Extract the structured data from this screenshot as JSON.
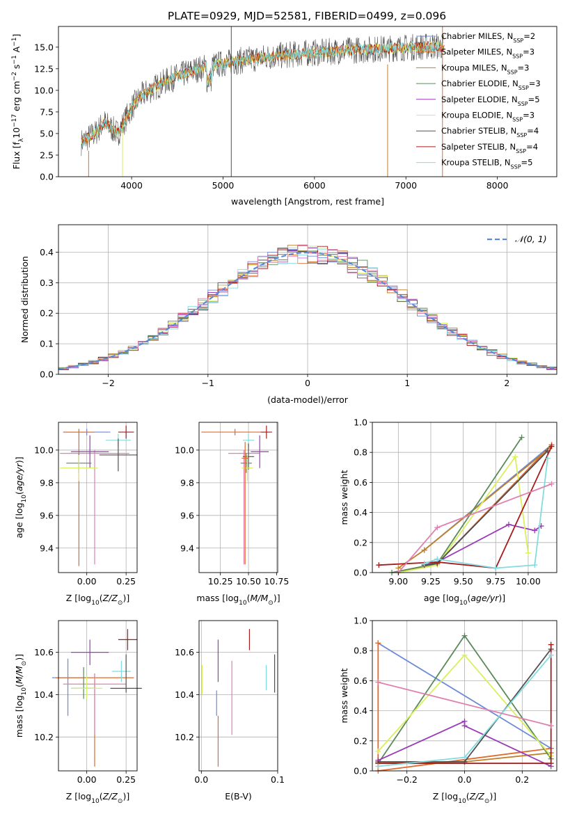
{
  "figure": {
    "title": "PLATE=0929, MJD=52581, FIBERID=0499, z=0.096"
  },
  "colors": {
    "chabrier_miles": "#6a8ad8",
    "salpeter_miles": "#e06a2a",
    "kroupa_miles": "#c07f2a",
    "chabrier_elodie": "#5a8a5a",
    "salpeter_elodie": "#9a3ab8",
    "kroupa_elodie": "#d8f05a",
    "chabrier_stelib": "#505050",
    "salpeter_stelib": "#a81a1a",
    "kroupa_stelib": "#80dce0",
    "pink": "#e080b0",
    "normal_curve": "#5a8ad8",
    "grid": "#b0b0b0"
  },
  "chart_data": [
    {
      "id": "spectrum",
      "type": "line",
      "xlabel": "wavelength [Angstrom, rest frame]",
      "ylabel": "Flux [f_λ10^-17 erg cm^-2 s^-1 A^-1]",
      "xlim": [
        3200,
        8650
      ],
      "ylim": [
        0,
        17.4
      ],
      "xticks": [
        "4000",
        "5000",
        "6000",
        "7000",
        "8000"
      ],
      "yticks": [
        "0.0",
        "2.5",
        "5.0",
        "7.5",
        "10.0",
        "12.5",
        "15.0"
      ],
      "grid": false,
      "legend_position": "top-right",
      "legend": [
        {
          "label": "Chabrier MILES, N",
          "sub": "SSP",
          "suffix": "=2",
          "color_key": "chabrier_miles"
        },
        {
          "label": "Salpeter MILES, N",
          "sub": "SSP",
          "suffix": "=3",
          "color_key": "salpeter_miles"
        },
        {
          "label": "Kroupa MILES, N",
          "sub": "SSP",
          "suffix": "=3",
          "color_key": "kroupa_miles"
        },
        {
          "label": "Chabrier ELODIE, N",
          "sub": "SSP",
          "suffix": "=3",
          "color_key": "chabrier_elodie"
        },
        {
          "label": "Salpeter ELODIE, N",
          "sub": "SSP",
          "suffix": "=5",
          "color_key": "salpeter_elodie"
        },
        {
          "label": "Kroupa ELODIE, N",
          "sub": "SSP",
          "suffix": "=3",
          "color_key": "kroupa_elodie"
        },
        {
          "label": "Chabrier STELIB, N",
          "sub": "SSP",
          "suffix": "=4",
          "color_key": "chabrier_stelib"
        },
        {
          "label": "Salpeter STELIB, N",
          "sub": "SSP",
          "suffix": "=4",
          "color_key": "salpeter_stelib"
        },
        {
          "label": "Kroupa STELIB, N",
          "sub": "SSP",
          "suffix": "=5",
          "color_key": "kroupa_stelib"
        }
      ],
      "continuum_x": [
        3450,
        3600,
        3700,
        3850,
        4000,
        4100,
        4200,
        4300,
        4400,
        4500,
        4700,
        4900,
        5100,
        5300,
        5500,
        5700,
        5900,
        6100,
        6300,
        6500,
        6700,
        6900,
        7100,
        7300,
        7400
      ],
      "continuum_y": [
        4.0,
        5.0,
        6.3,
        5.0,
        8.0,
        9.3,
        10.0,
        10.6,
        11.2,
        11.6,
        12.4,
        12.9,
        13.3,
        13.6,
        13.9,
        14.1,
        14.3,
        14.4,
        14.6,
        14.7,
        14.8,
        14.9,
        15.0,
        15.1,
        15.1
      ],
      "spikes": [
        {
          "x": 5090,
          "y_top": 17.4,
          "y_bottom": 0,
          "color_key": "chabrier_stelib"
        },
        {
          "x": 7400,
          "y_top": 17.4,
          "y_bottom": 0,
          "color_key": "salpeter_miles"
        },
        {
          "x": 6800,
          "y_top": 13.0,
          "y_bottom": 0,
          "color_key": "kroupa_miles"
        },
        {
          "x": 3900,
          "y_top": 6.0,
          "y_bottom": 0,
          "color_key": "kroupa_elodie"
        },
        {
          "x": 3530,
          "y_top": 3.0,
          "y_bottom": 0,
          "color_key": "salpeter_miles"
        }
      ]
    },
    {
      "id": "residuals",
      "type": "bar",
      "xlabel": "(data-model)/error",
      "ylabel": "Normed distribution",
      "xlim": [
        -2.5,
        2.5
      ],
      "ylim": [
        0,
        0.49
      ],
      "xticks": [
        "−2",
        "−1",
        "0",
        "1",
        "2"
      ],
      "yticks": [
        "0.0",
        "0.1",
        "0.2",
        "0.3",
        "0.4"
      ],
      "grid": true,
      "legend_position": "top-right",
      "legend": [
        {
          "label": "𝒩(0, 1)",
          "color_key": "normal_curve"
        }
      ],
      "bin_width": 0.1,
      "bin_start": -2.5
    },
    {
      "id": "age_vs_Z",
      "type": "scatter",
      "xlabel": "Z [log10(Z/Z⊙)]",
      "ylabel": "age [log10(age/yr)]",
      "xlim": [
        -0.18,
        0.32
      ],
      "ylim": [
        9.25,
        10.17
      ],
      "xticks": [
        "0.00",
        "0.25"
      ],
      "yticks": [
        "9.4",
        "9.6",
        "9.8",
        "10.0"
      ],
      "grid": true,
      "points": [
        {
          "x": 0.0,
          "y": 10.11,
          "xerr": 0.15,
          "yerr": 0.02,
          "color_key": "chabrier_miles"
        },
        {
          "x": -0.05,
          "y": 10.11,
          "xerr": 0.1,
          "yerr": [
            0.82,
            0.02
          ],
          "color_key": "salpeter_miles"
        },
        {
          "x": 0.25,
          "y": 10.11,
          "xerr": 0.05,
          "yerr": 0.04,
          "color_key": "salpeter_stelib"
        },
        {
          "x": 0.2,
          "y": 10.06,
          "xerr": 0.08,
          "yerr": 0.04,
          "color_key": "kroupa_stelib"
        },
        {
          "x": 0.05,
          "y": 9.98,
          "xerr": 0.22,
          "yerr": [
            0.68,
            0.02
          ],
          "color_key": "pink"
        },
        {
          "x": 0.02,
          "y": 9.99,
          "xerr": 0.12,
          "yerr": 0.1,
          "color_key": "salpeter_elodie"
        },
        {
          "x": 0.2,
          "y": 9.97,
          "xerr": 0.12,
          "yerr": 0.1,
          "color_key": "chabrier_stelib"
        },
        {
          "x": -0.05,
          "y": 9.92,
          "xerr": 0.08,
          "yerr": 0.06,
          "color_key": "chabrier_elodie"
        },
        {
          "x": -0.05,
          "y": 9.89,
          "xerr": 0.12,
          "yerr": 0.08,
          "color_key": "kroupa_elodie"
        }
      ]
    },
    {
      "id": "age_vs_mass",
      "type": "scatter",
      "xlabel": "mass [log10(M/M⊙)]",
      "ylabel": "",
      "xlim": [
        10.06,
        10.76
      ],
      "ylim": [
        9.25,
        10.17
      ],
      "xticks": [
        "10.25",
        "10.50",
        "10.75"
      ],
      "yticks": [
        "9.4",
        "9.6",
        "9.8",
        "10.0"
      ],
      "grid": true,
      "points": [
        {
          "x": 10.38,
          "y": 10.11,
          "xerr": 0.3,
          "yerr": 0.02,
          "color_key": "salpeter_miles"
        },
        {
          "x": 10.66,
          "y": 10.11,
          "xerr": 0.05,
          "yerr": 0.04,
          "color_key": "salpeter_stelib"
        },
        {
          "x": 10.5,
          "y": 10.06,
          "xerr": 0.05,
          "yerr": 0.04,
          "color_key": "kroupa_stelib"
        },
        {
          "x": 10.46,
          "y": 9.98,
          "xerr": 0.14,
          "yerr": [
            0.68,
            0.02
          ],
          "color_key": "pink"
        },
        {
          "x": 10.6,
          "y": 9.99,
          "xerr": 0.08,
          "yerr": 0.1,
          "color_key": "salpeter_elodie"
        },
        {
          "x": 10.5,
          "y": 9.96,
          "xerr": 0.05,
          "yerr": 0.08,
          "color_key": "chabrier_stelib"
        },
        {
          "x": 10.48,
          "y": 9.92,
          "xerr": 0.05,
          "yerr": 0.06,
          "color_key": "chabrier_elodie"
        },
        {
          "x": 10.49,
          "y": 9.89,
          "xerr": 0.05,
          "yerr": 0.08,
          "color_key": "kroupa_elodie"
        },
        {
          "x": 10.47,
          "y": 9.95,
          "xerr": 0.03,
          "yerr": [
            0.65,
            0.1
          ],
          "color_key": "salpeter_miles"
        }
      ]
    },
    {
      "id": "mass_weight_vs_age",
      "type": "line",
      "xlabel": "age [log10(age/yr)]",
      "ylabel": "mass weight",
      "xlim": [
        8.8,
        10.22
      ],
      "ylim": [
        0,
        1.0
      ],
      "xticks": [
        "9.00",
        "9.25",
        "9.50",
        "9.75",
        "10.00"
      ],
      "yticks": [
        "0.0",
        "0.2",
        "0.4",
        "0.6",
        "0.8",
        "1.0"
      ],
      "grid": true,
      "series": [
        {
          "color_key": "chabrier_miles",
          "x": [
            9.2,
            10.18
          ],
          "y": [
            0.15,
            0.85
          ]
        },
        {
          "color_key": "salpeter_miles",
          "x": [
            9.0,
            9.3,
            10.18
          ],
          "y": [
            0.0,
            0.06,
            0.85
          ]
        },
        {
          "color_key": "kroupa_miles",
          "x": [
            9.0,
            9.2,
            10.18
          ],
          "y": [
            0.03,
            0.15,
            0.84
          ]
        },
        {
          "color_key": "chabrier_elodie",
          "x": [
            8.95,
            9.3,
            9.95
          ],
          "y": [
            0.0,
            0.06,
            0.9
          ]
        },
        {
          "color_key": "salpeter_elodie",
          "x": [
            9.2,
            9.3,
            9.85,
            10.05,
            10.1
          ],
          "y": [
            0.05,
            0.07,
            0.32,
            0.28,
            0.31
          ]
        },
        {
          "color_key": "kroupa_elodie",
          "x": [
            9.0,
            9.3,
            9.9,
            10.0
          ],
          "y": [
            0.0,
            0.05,
            0.77,
            0.13
          ]
        },
        {
          "color_key": "chabrier_stelib",
          "x": [
            9.2,
            9.3,
            10.15
          ],
          "y": [
            0.05,
            0.06,
            0.81
          ]
        },
        {
          "color_key": "salpeter_stelib",
          "x": [
            8.85,
            9.3,
            9.75,
            10.18
          ],
          "y": [
            0.05,
            0.07,
            0.03,
            0.84
          ]
        },
        {
          "color_key": "kroupa_stelib",
          "x": [
            9.2,
            9.3,
            9.75,
            10.05,
            10.15
          ],
          "y": [
            0.06,
            0.09,
            0.03,
            0.05,
            0.76
          ]
        },
        {
          "color_key": "pink",
          "x": [
            9.0,
            9.3,
            10.18
          ],
          "y": [
            0.0,
            0.3,
            0.59
          ]
        }
      ]
    },
    {
      "id": "mass_vs_Z",
      "type": "scatter",
      "xlabel": "Z [log10(Z/Z⊙)]",
      "ylabel": "mass [log10(M/M⊙)]",
      "xlim": [
        -0.18,
        0.32
      ],
      "ylim": [
        10.04,
        10.75
      ],
      "xticks": [
        "0.00",
        "0.25"
      ],
      "yticks": [
        "10.2",
        "10.4",
        "10.6"
      ],
      "grid": true,
      "points": [
        {
          "x": -0.12,
          "y": 10.48,
          "xerr": 0.1,
          "yerr": [
            0.18,
            0.09
          ],
          "color_key": "chabrier_miles"
        },
        {
          "x": 0.05,
          "y": 10.48,
          "xerr": 0.25,
          "yerr": [
            0.42,
            0.02
          ],
          "color_key": "salpeter_miles"
        },
        {
          "x": 0.26,
          "y": 10.66,
          "xerr": 0.06,
          "yerr": 0.05,
          "color_key": "salpeter_stelib"
        },
        {
          "x": 0.22,
          "y": 10.51,
          "xerr": 0.06,
          "yerr": 0.05,
          "color_key": "kroupa_stelib"
        },
        {
          "x": 0.05,
          "y": 10.45,
          "xerr": 0.2,
          "yerr": [
            0.24,
            0.05
          ],
          "color_key": "pink"
        },
        {
          "x": 0.02,
          "y": 10.6,
          "xerr": 0.12,
          "yerr": 0.06,
          "color_key": "salpeter_elodie"
        },
        {
          "x": 0.25,
          "y": 10.43,
          "xerr": 0.1,
          "yerr": [
            0.02,
            0.16
          ],
          "color_key": "chabrier_stelib"
        },
        {
          "x": -0.02,
          "y": 10.43,
          "xerr": 0.08,
          "yerr": [
            0.05,
            0.1
          ],
          "color_key": "chabrier_elodie"
        },
        {
          "x": 0.0,
          "y": 10.43,
          "xerr": 0.1,
          "yerr": [
            0.05,
            0.06
          ],
          "color_key": "kroupa_elodie"
        }
      ]
    },
    {
      "id": "mass_vs_ebv",
      "type": "scatter",
      "xlabel": "E(B-V)",
      "ylabel": "",
      "xlim": [
        -0.003,
        0.1
      ],
      "ylim": [
        10.04,
        10.75
      ],
      "xticks": [
        "0.0",
        "0.1"
      ],
      "yticks": [
        "10.2",
        "10.4",
        "10.6"
      ],
      "grid": true,
      "points": [
        {
          "x": 0.001,
          "y": 10.47,
          "yerr": 0.07,
          "color_key": "kroupa_elodie"
        },
        {
          "x": 0.02,
          "y": 10.36,
          "yerr": 0.06,
          "color_key": "chabrier_miles"
        },
        {
          "x": 0.022,
          "y": 10.3,
          "yerr": [
            0.24,
            0.0
          ],
          "color_key": "salpeter_miles"
        },
        {
          "x": 0.022,
          "y": 10.56,
          "yerr": 0.1,
          "color_key": "salpeter_elodie"
        },
        {
          "x": 0.04,
          "y": 10.4,
          "yerr": [
            0.19,
            0.16
          ],
          "color_key": "pink"
        },
        {
          "x": 0.063,
          "y": 10.66,
          "yerr": 0.05,
          "color_key": "salpeter_stelib"
        },
        {
          "x": 0.085,
          "y": 10.48,
          "yerr": 0.06,
          "color_key": "kroupa_stelib"
        },
        {
          "x": 0.096,
          "y": 10.5,
          "yerr": 0.09,
          "color_key": "chabrier_stelib"
        }
      ]
    },
    {
      "id": "mass_weight_vs_Z",
      "type": "line",
      "xlabel": "Z [log10(Z/Z⊙)]",
      "ylabel": "mass weight",
      "xlim": [
        -0.32,
        0.32
      ],
      "ylim": [
        0,
        1.0
      ],
      "xticks": [
        "−0.2",
        "0.0",
        "0.2"
      ],
      "yticks": [
        "0.0",
        "0.2",
        "0.4",
        "0.6",
        "0.8",
        "1.0"
      ],
      "grid": true,
      "series": [
        {
          "color_key": "chabrier_miles",
          "x": [
            -0.3,
            0.3
          ],
          "y": [
            0.85,
            0.15
          ]
        },
        {
          "color_key": "salpeter_miles",
          "x": [
            -0.3,
            -0.3,
            0.3
          ],
          "y": [
            0.85,
            0.0,
            0.15
          ]
        },
        {
          "color_key": "kroupa_miles",
          "x": [
            -0.3,
            0.0,
            0.3
          ],
          "y": [
            0.05,
            0.06,
            0.12
          ]
        },
        {
          "color_key": "chabrier_elodie",
          "x": [
            -0.3,
            0.0,
            0.3
          ],
          "y": [
            0.05,
            0.9,
            0.08
          ]
        },
        {
          "color_key": "salpeter_elodie",
          "x": [
            -0.3,
            0.0,
            0.0,
            0.3
          ],
          "y": [
            0.07,
            0.33,
            0.3,
            0.03
          ]
        },
        {
          "color_key": "kroupa_elodie",
          "x": [
            -0.3,
            0.0,
            0.3
          ],
          "y": [
            0.13,
            0.77,
            0.1
          ]
        },
        {
          "color_key": "chabrier_stelib",
          "x": [
            -0.3,
            0.0,
            0.3
          ],
          "y": [
            0.06,
            0.06,
            0.81
          ]
        },
        {
          "color_key": "salpeter_stelib",
          "x": [
            -0.3,
            0.3,
            0.3
          ],
          "y": [
            0.05,
            0.05,
            0.84
          ]
        },
        {
          "color_key": "kroupa_stelib",
          "x": [
            -0.3,
            0.0,
            0.3
          ],
          "y": [
            0.03,
            0.09,
            0.77
          ]
        },
        {
          "color_key": "pink",
          "x": [
            -0.3,
            0.3
          ],
          "y": [
            0.59,
            0.3
          ]
        }
      ]
    }
  ]
}
